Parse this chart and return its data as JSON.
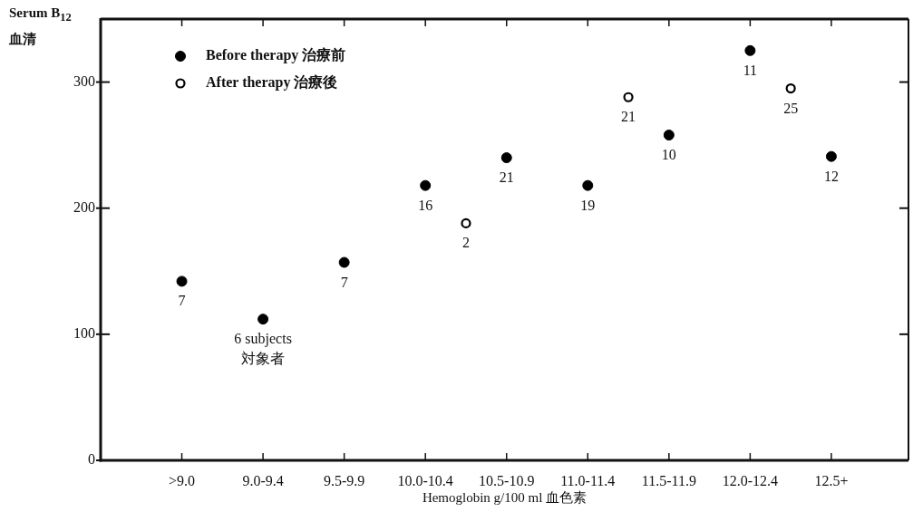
{
  "chart_data": {
    "type": "scatter",
    "xlabel": "Hemoglobin g/100 ml 血色素",
    "ylabel": "Serum B$_{12}$ 血清",
    "categories": [
      ">9.0",
      null,
      "9.0-9.4",
      null,
      "9.5-9.9",
      null,
      "10.0-10.4",
      null,
      "10.5-10.9",
      null,
      "11.0-11.4",
      null,
      "11.5-11.9",
      null,
      "12.0-12.4",
      null,
      "12.5+"
    ],
    "ylim": [
      0,
      350
    ],
    "yticks": [
      0,
      100,
      200,
      300
    ],
    "series": [
      {
        "name": "Before therapy 治療前",
        "color": "#000000",
        "values": [
          142,
          null,
          112,
          null,
          157,
          null,
          218,
          null,
          240,
          null,
          218,
          null,
          258,
          null,
          325,
          null,
          241
        ]
      },
      {
        "name": "After therapy 治療後",
        "color": "#000000",
        "values": [
          null,
          null,
          null,
          null,
          null,
          null,
          null,
          188,
          null,
          null,
          null,
          288,
          null,
          null,
          null,
          295,
          null
        ]
      }
    ],
    "marker": "circle",
    "legend": "top left",
    "annotations": [
      {
        "text": "7",
        "x": ">9.0",
        "y": 142
      },
      {
        "text": "6 subjects 対象者",
        "x": "9.0-9.4",
        "y": 112
      },
      {
        "text": "7",
        "x": "9.5-9.9",
        "y": 157
      },
      {
        "text": "16",
        "x": "10.0-10.4",
        "y": 218
      },
      {
        "text": "21",
        "x": "10.5-10.9",
        "y": 240
      },
      {
        "text": "19",
        "x": "11.0-11.4",
        "y": 218
      },
      {
        "text": "10",
        "x": "11.5-11.9",
        "y": 258
      },
      {
        "text": "11",
        "x": "12.0-12.4",
        "y": 325
      },
      {
        "text": "12",
        "x": "12.5+",
        "y": 241
      },
      {
        "text": "2",
        "y": 188
      },
      {
        "text": "21",
        "y": 288
      },
      {
        "text": "25",
        "y": 295
      }
    ]
  }
}
